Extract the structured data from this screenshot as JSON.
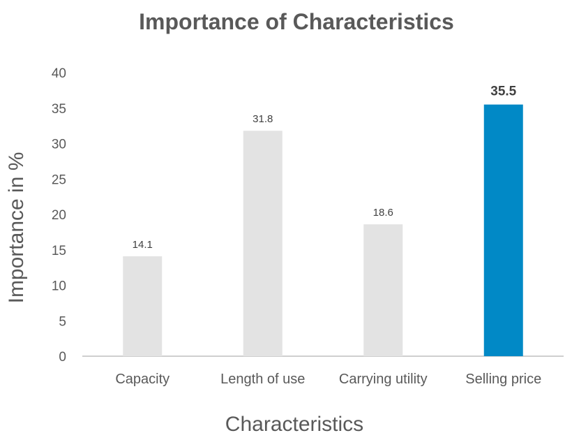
{
  "chart_data": {
    "type": "bar",
    "title": "Importance of Characteristics",
    "xlabel": "Characteristics",
    "ylabel": "Importance in %",
    "categories": [
      "Capacity",
      "Length of use",
      "Carrying utility",
      "Selling price"
    ],
    "values": [
      14.1,
      31.8,
      18.6,
      35.5
    ],
    "data_labels": [
      "14.1",
      "31.8",
      "18.6",
      "35.5"
    ],
    "highlight_index": 3,
    "ylim": [
      0,
      40
    ],
    "yticks": [
      0,
      5,
      10,
      15,
      20,
      25,
      30,
      35,
      40
    ],
    "ytick_labels": [
      "0",
      "5",
      "10",
      "15",
      "20",
      "25",
      "30",
      "35",
      "40"
    ],
    "grid": false,
    "legend": "none",
    "colors": {
      "bar": "#e3e3e3",
      "highlight_bar": "#0189c6",
      "axis": "#bfbfbf",
      "text": "#595959"
    }
  }
}
